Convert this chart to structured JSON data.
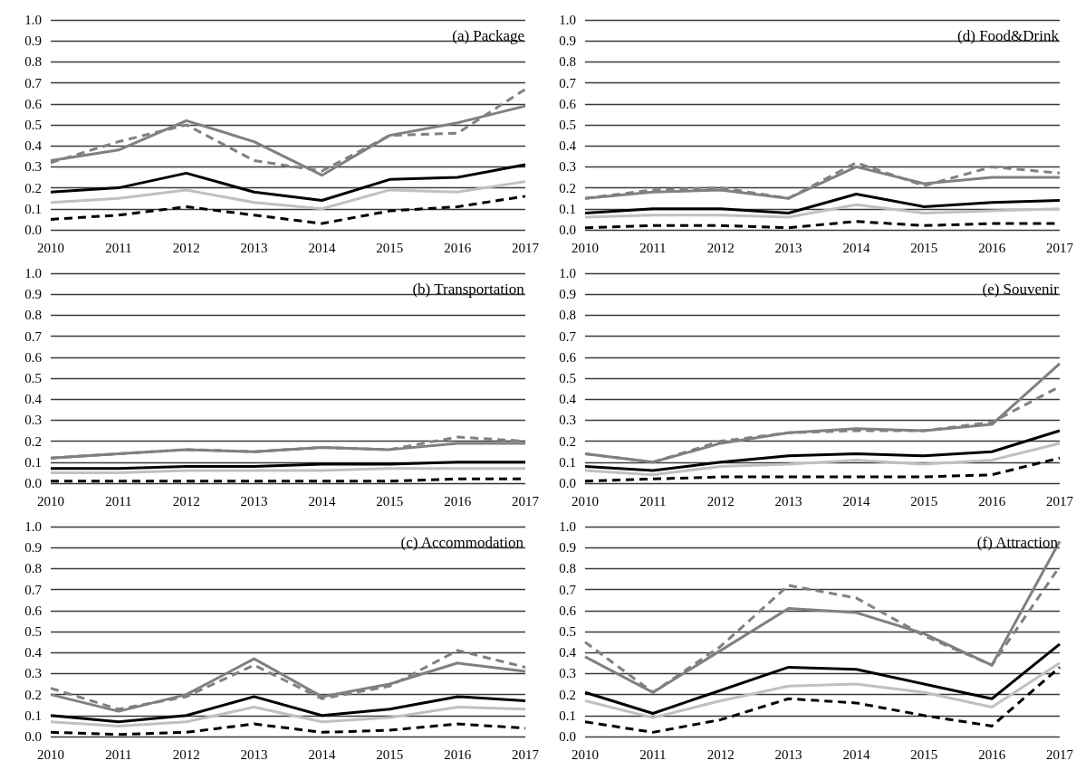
{
  "chart_data": [
    {
      "type": "line",
      "title": "(a) Package",
      "categories": [
        "2010",
        "2011",
        "2012",
        "2013",
        "2014",
        "2015",
        "2016",
        "2017"
      ],
      "ylim": [
        0,
        1
      ],
      "yticks": [
        {
          "value": 0,
          "label": "0.0"
        },
        {
          "value": 0.1,
          "label": "0.1"
        },
        {
          "value": 0.2,
          "label": "0.2"
        },
        {
          "value": 0.3,
          "label": "0.3"
        },
        {
          "value": 0.4,
          "label": "0.4"
        },
        {
          "value": 0.5,
          "label": "0.5"
        },
        {
          "value": 0.6,
          "label": "0.6"
        },
        {
          "value": 0.7,
          "label": "0.7"
        },
        {
          "value": 0.8,
          "label": "0.8"
        },
        {
          "value": 0.9,
          "label": "0.9"
        },
        {
          "value": 1,
          "label": "1.0"
        }
      ],
      "grid": "y",
      "marker": "none",
      "series": [
        {
          "color": "#000000",
          "line_style": "solid",
          "values": [
            0.18,
            0.2,
            0.27,
            0.18,
            0.14,
            0.24,
            0.25,
            0.31
          ]
        },
        {
          "color": "#c0c0c0",
          "line_style": "solid",
          "values": [
            0.13,
            0.15,
            0.19,
            0.13,
            0.1,
            0.19,
            0.18,
            0.23
          ]
        },
        {
          "color": "#000000",
          "line_style": "dashed",
          "values": [
            0.05,
            0.07,
            0.11,
            0.07,
            0.03,
            0.09,
            0.11,
            0.16
          ]
        },
        {
          "color": "#808080",
          "line_style": "solid",
          "values": [
            0.33,
            0.38,
            0.52,
            0.42,
            0.26,
            0.45,
            0.51,
            0.59
          ]
        },
        {
          "color": "#808080",
          "line_style": "dashed",
          "values": [
            0.32,
            0.42,
            0.5,
            0.33,
            0.28,
            0.45,
            0.46,
            0.67
          ]
        }
      ]
    },
    {
      "type": "line",
      "title": "(d) Food&Drink",
      "categories": [
        "2010",
        "2011",
        "2012",
        "2013",
        "2014",
        "2015",
        "2016",
        "2017"
      ],
      "ylim": [
        0,
        1
      ],
      "yticks": [
        {
          "value": 0,
          "label": "0.0"
        },
        {
          "value": 0.1,
          "label": "0.1"
        },
        {
          "value": 0.2,
          "label": "0.2"
        },
        {
          "value": 0.3,
          "label": "0.3"
        },
        {
          "value": 0.4,
          "label": "0.4"
        },
        {
          "value": 0.5,
          "label": "0.5"
        },
        {
          "value": 0.6,
          "label": "0.6"
        },
        {
          "value": 0.7,
          "label": "0.7"
        },
        {
          "value": 0.8,
          "label": "0.8"
        },
        {
          "value": 0.9,
          "label": "0.9"
        },
        {
          "value": 1,
          "label": "1.0"
        }
      ],
      "grid": "y",
      "marker": "none",
      "series": [
        {
          "color": "#000000",
          "line_style": "solid",
          "values": [
            0.08,
            0.1,
            0.1,
            0.08,
            0.17,
            0.11,
            0.13,
            0.14
          ]
        },
        {
          "color": "#c0c0c0",
          "line_style": "solid",
          "values": [
            0.06,
            0.07,
            0.07,
            0.06,
            0.12,
            0.08,
            0.09,
            0.1
          ]
        },
        {
          "color": "#000000",
          "line_style": "dashed",
          "values": [
            0.01,
            0.02,
            0.02,
            0.01,
            0.04,
            0.02,
            0.03,
            0.03
          ]
        },
        {
          "color": "#808080",
          "line_style": "solid",
          "values": [
            0.15,
            0.18,
            0.19,
            0.15,
            0.3,
            0.22,
            0.25,
            0.25
          ]
        },
        {
          "color": "#808080",
          "line_style": "dashed",
          "values": [
            0.15,
            0.19,
            0.2,
            0.15,
            0.32,
            0.21,
            0.3,
            0.27
          ]
        }
      ]
    },
    {
      "type": "line",
      "title": "(b) Transportation",
      "categories": [
        "2010",
        "2011",
        "2012",
        "2013",
        "2014",
        "2015",
        "2016",
        "2017"
      ],
      "ylim": [
        0,
        1
      ],
      "yticks": [
        {
          "value": 0,
          "label": "0.0"
        },
        {
          "value": 0.1,
          "label": "0.1"
        },
        {
          "value": 0.2,
          "label": "0.2"
        },
        {
          "value": 0.3,
          "label": "0.3"
        },
        {
          "value": 0.4,
          "label": "0.4"
        },
        {
          "value": 0.5,
          "label": "0.5"
        },
        {
          "value": 0.6,
          "label": "0.6"
        },
        {
          "value": 0.7,
          "label": "0.7"
        },
        {
          "value": 0.8,
          "label": "0.8"
        },
        {
          "value": 0.9,
          "label": "0.9"
        },
        {
          "value": 1,
          "label": "1.0"
        }
      ],
      "grid": "y",
      "marker": "none",
      "series": [
        {
          "color": "#000000",
          "line_style": "solid",
          "values": [
            0.07,
            0.07,
            0.08,
            0.08,
            0.09,
            0.09,
            0.1,
            0.1
          ]
        },
        {
          "color": "#c0c0c0",
          "line_style": "solid",
          "values": [
            0.05,
            0.05,
            0.06,
            0.06,
            0.06,
            0.07,
            0.07,
            0.07
          ]
        },
        {
          "color": "#000000",
          "line_style": "dashed",
          "values": [
            0.01,
            0.01,
            0.01,
            0.01,
            0.01,
            0.01,
            0.02,
            0.02
          ]
        },
        {
          "color": "#808080",
          "line_style": "solid",
          "values": [
            0.12,
            0.14,
            0.16,
            0.15,
            0.17,
            0.16,
            0.19,
            0.19
          ]
        },
        {
          "color": "#808080",
          "line_style": "dashed",
          "values": [
            0.12,
            0.14,
            0.16,
            0.15,
            0.17,
            0.16,
            0.22,
            0.2
          ]
        }
      ]
    },
    {
      "type": "line",
      "title": "(e) Souvenir",
      "categories": [
        "2010",
        "2011",
        "2012",
        "2013",
        "2014",
        "2015",
        "2016",
        "2017"
      ],
      "ylim": [
        0,
        1
      ],
      "yticks": [
        {
          "value": 0,
          "label": "0.0"
        },
        {
          "value": 0.1,
          "label": "0.1"
        },
        {
          "value": 0.2,
          "label": "0.2"
        },
        {
          "value": 0.3,
          "label": "0.3"
        },
        {
          "value": 0.4,
          "label": "0.4"
        },
        {
          "value": 0.5,
          "label": "0.5"
        },
        {
          "value": 0.6,
          "label": "0.6"
        },
        {
          "value": 0.7,
          "label": "0.7"
        },
        {
          "value": 0.8,
          "label": "0.8"
        },
        {
          "value": 0.9,
          "label": "0.9"
        },
        {
          "value": 1,
          "label": "1.0"
        }
      ],
      "grid": "y",
      "marker": "none",
      "series": [
        {
          "color": "#000000",
          "line_style": "solid",
          "values": [
            0.08,
            0.06,
            0.1,
            0.13,
            0.14,
            0.13,
            0.15,
            0.25
          ]
        },
        {
          "color": "#c0c0c0",
          "line_style": "solid",
          "values": [
            0.06,
            0.04,
            0.08,
            0.09,
            0.11,
            0.09,
            0.11,
            0.19
          ]
        },
        {
          "color": "#000000",
          "line_style": "dashed",
          "values": [
            0.01,
            0.02,
            0.03,
            0.03,
            0.03,
            0.03,
            0.04,
            0.12
          ]
        },
        {
          "color": "#808080",
          "line_style": "solid",
          "values": [
            0.14,
            0.1,
            0.19,
            0.24,
            0.26,
            0.25,
            0.28,
            0.57
          ]
        },
        {
          "color": "#808080",
          "line_style": "dashed",
          "values": [
            0.14,
            0.1,
            0.2,
            0.24,
            0.25,
            0.25,
            0.29,
            0.46
          ]
        }
      ]
    },
    {
      "type": "line",
      "title": "(c) Accommodation",
      "categories": [
        "2010",
        "2011",
        "2012",
        "2013",
        "2014",
        "2015",
        "2016",
        "2017"
      ],
      "ylim": [
        0,
        1
      ],
      "yticks": [
        {
          "value": 0,
          "label": "0.0"
        },
        {
          "value": 0.1,
          "label": "0.1"
        },
        {
          "value": 0.2,
          "label": "0.2"
        },
        {
          "value": 0.3,
          "label": "0.3"
        },
        {
          "value": 0.4,
          "label": "0.4"
        },
        {
          "value": 0.5,
          "label": "0.5"
        },
        {
          "value": 0.6,
          "label": "0.6"
        },
        {
          "value": 0.7,
          "label": "0.7"
        },
        {
          "value": 0.8,
          "label": "0.8"
        },
        {
          "value": 0.9,
          "label": "0.9"
        },
        {
          "value": 1,
          "label": "1.0"
        }
      ],
      "grid": "y",
      "marker": "none",
      "series": [
        {
          "color": "#000000",
          "line_style": "solid",
          "values": [
            0.1,
            0.07,
            0.1,
            0.19,
            0.1,
            0.13,
            0.19,
            0.17
          ]
        },
        {
          "color": "#c0c0c0",
          "line_style": "solid",
          "values": [
            0.07,
            0.05,
            0.07,
            0.14,
            0.07,
            0.09,
            0.14,
            0.13
          ]
        },
        {
          "color": "#000000",
          "line_style": "dashed",
          "values": [
            0.02,
            0.01,
            0.02,
            0.06,
            0.02,
            0.03,
            0.06,
            0.04
          ]
        },
        {
          "color": "#808080",
          "line_style": "solid",
          "values": [
            0.2,
            0.12,
            0.2,
            0.37,
            0.19,
            0.25,
            0.35,
            0.31
          ]
        },
        {
          "color": "#808080",
          "line_style": "dashed",
          "values": [
            0.23,
            0.13,
            0.19,
            0.34,
            0.18,
            0.24,
            0.41,
            0.33
          ]
        }
      ]
    },
    {
      "type": "line",
      "title": "(f) Attraction",
      "categories": [
        "2010",
        "2011",
        "2012",
        "2013",
        "2014",
        "2015",
        "2016",
        "2017"
      ],
      "ylim": [
        0,
        1
      ],
      "yticks": [
        {
          "value": 0,
          "label": "0.0"
        },
        {
          "value": 0.1,
          "label": "0.1"
        },
        {
          "value": 0.2,
          "label": "0.2"
        },
        {
          "value": 0.3,
          "label": "0.3"
        },
        {
          "value": 0.4,
          "label": "0.4"
        },
        {
          "value": 0.5,
          "label": "0.5"
        },
        {
          "value": 0.6,
          "label": "0.6"
        },
        {
          "value": 0.7,
          "label": "0.7"
        },
        {
          "value": 0.8,
          "label": "0.8"
        },
        {
          "value": 0.9,
          "label": "0.9"
        },
        {
          "value": 1,
          "label": "1.0"
        }
      ],
      "grid": "y",
      "marker": "none",
      "series": [
        {
          "color": "#000000",
          "line_style": "solid",
          "values": [
            0.21,
            0.11,
            0.22,
            0.33,
            0.32,
            0.25,
            0.18,
            0.44
          ]
        },
        {
          "color": "#c0c0c0",
          "line_style": "solid",
          "values": [
            0.17,
            0.09,
            0.17,
            0.24,
            0.25,
            0.21,
            0.14,
            0.35
          ]
        },
        {
          "color": "#000000",
          "line_style": "dashed",
          "values": [
            0.07,
            0.02,
            0.08,
            0.18,
            0.16,
            0.1,
            0.05,
            0.33
          ]
        },
        {
          "color": "#808080",
          "line_style": "solid",
          "values": [
            0.38,
            0.21,
            0.41,
            0.61,
            0.59,
            0.49,
            0.34,
            0.93
          ]
        },
        {
          "color": "#808080",
          "line_style": "dashed",
          "values": [
            0.45,
            0.21,
            0.43,
            0.72,
            0.66,
            0.48,
            0.34,
            0.81
          ]
        }
      ]
    }
  ]
}
